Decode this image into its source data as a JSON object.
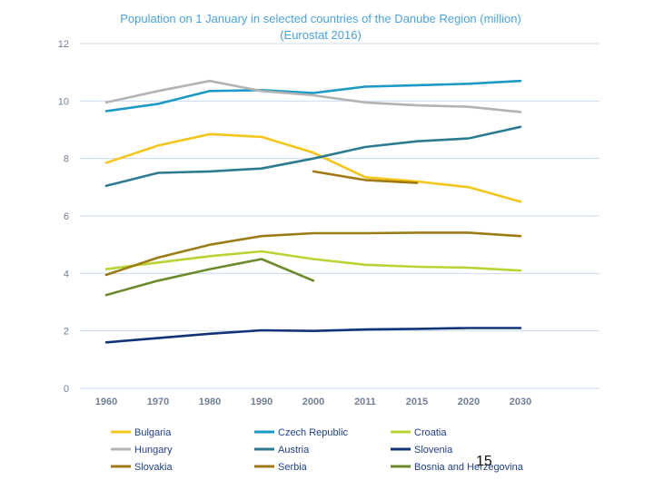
{
  "chart_data": {
    "type": "line",
    "title": "Population on 1 January in selected countries of the Danube Region (million)",
    "subtitle": "(Eurostat 2016)",
    "xlabel": "",
    "ylabel": "",
    "ylim": [
      0,
      12
    ],
    "yticks": [
      "0",
      "2",
      "4",
      "6",
      "8",
      "10",
      "12"
    ],
    "categories": [
      "1960",
      "1970",
      "1980",
      "1990",
      "2000",
      "2011",
      "2015",
      "2020",
      "2030"
    ],
    "grid": true,
    "legend_position": "bottom",
    "series": [
      {
        "name": "Bulgaria",
        "color": "#f5c518",
        "values": [
          7.85,
          8.45,
          8.85,
          8.75,
          8.2,
          7.35,
          7.2,
          7.0,
          6.5
        ]
      },
      {
        "name": "Czech Republic",
        "color": "#1a9ac4",
        "values": [
          9.65,
          9.9,
          10.35,
          10.38,
          10.28,
          10.5,
          10.55,
          10.6,
          10.7
        ]
      },
      {
        "name": "Croatia",
        "color": "#b7d433",
        "values": [
          4.15,
          4.38,
          4.6,
          4.77,
          4.5,
          4.3,
          4.23,
          4.2,
          4.1
        ]
      },
      {
        "name": "Hungary",
        "color": "#b3b3b3",
        "values": [
          9.95,
          10.35,
          10.7,
          10.35,
          10.2,
          9.95,
          9.85,
          9.8,
          9.62
        ]
      },
      {
        "name": "Austria",
        "color": "#2c7b91",
        "values": [
          7.05,
          7.5,
          7.55,
          7.65,
          8.0,
          8.4,
          8.6,
          8.7,
          9.1
        ]
      },
      {
        "name": "Slovenia",
        "color": "#10337a",
        "values": [
          1.6,
          1.75,
          1.9,
          2.02,
          2.0,
          2.05,
          2.07,
          2.1,
          2.1
        ]
      },
      {
        "name": "Slovakia",
        "color": "#9c7b14",
        "values": [
          3.95,
          4.55,
          5.0,
          5.3,
          5.4,
          5.4,
          5.42,
          5.42,
          5.3
        ]
      },
      {
        "name": "Serbia",
        "color": "#a07a10",
        "values": [
          null,
          null,
          null,
          null,
          7.55,
          7.25,
          7.15,
          null,
          null
        ]
      },
      {
        "name": "Bosnia and Herzegovina",
        "color": "#6b8a2a",
        "values": [
          3.25,
          3.75,
          4.15,
          4.5,
          3.75,
          null,
          null,
          null,
          null
        ]
      }
    ]
  },
  "slide": {
    "page_number": "15"
  }
}
